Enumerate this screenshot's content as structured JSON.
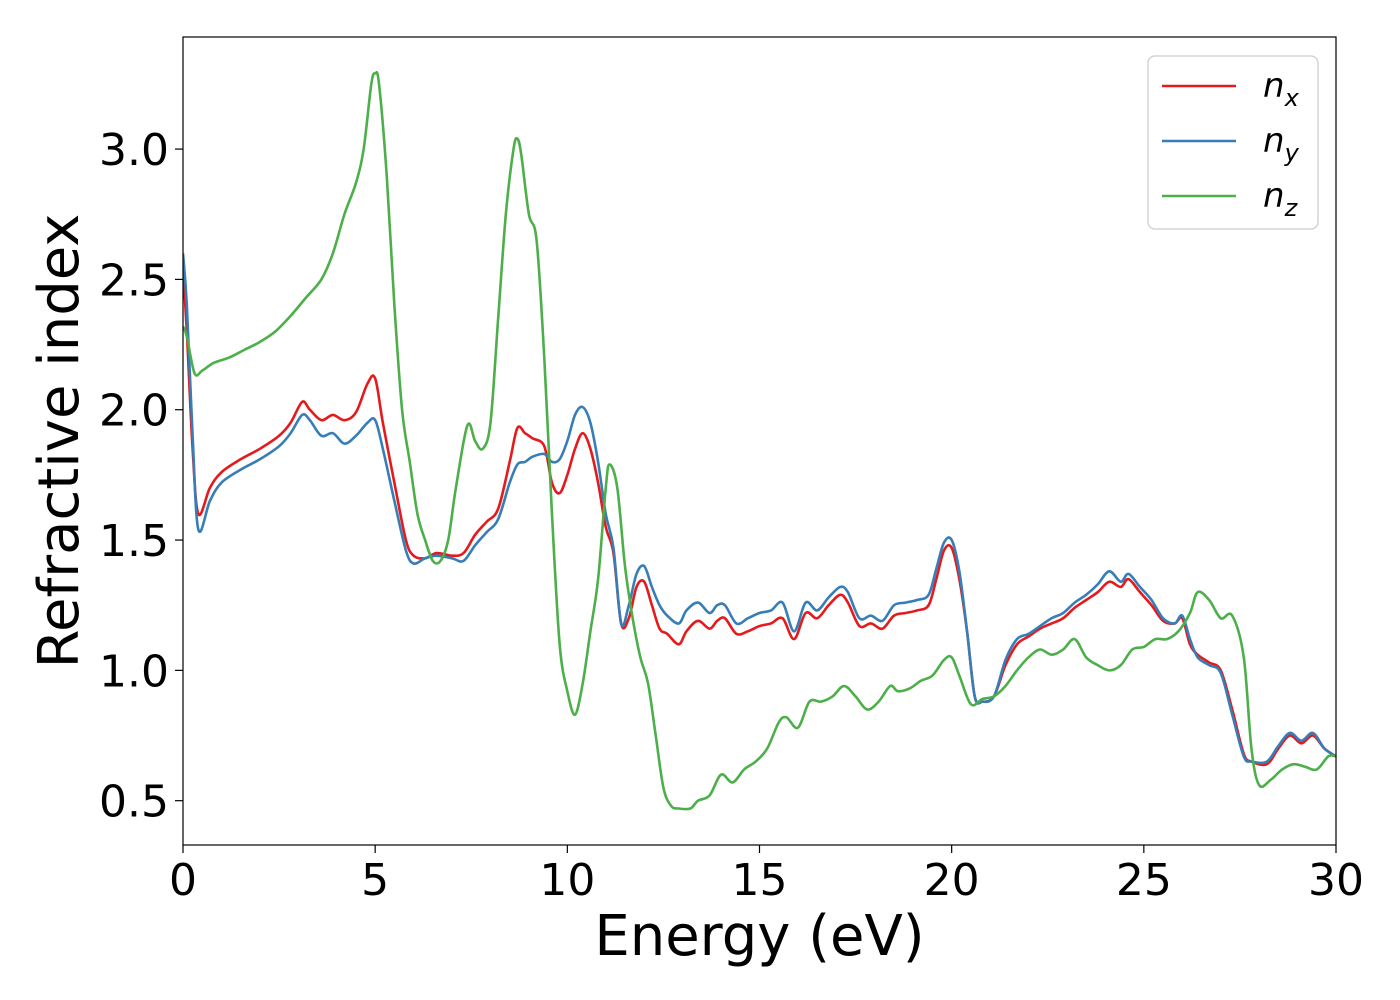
{
  "chart_data": {
    "type": "line",
    "xlabel": "Energy (eV)",
    "ylabel": "Refractive index",
    "xlim": [
      0,
      30
    ],
    "ylim": [
      0.33,
      3.43
    ],
    "xticks": [
      0,
      5,
      10,
      15,
      20,
      25,
      30
    ],
    "yticks": [
      0.5,
      1.0,
      1.5,
      2.0,
      2.5,
      3.0
    ],
    "grid": false,
    "legend": "top-right",
    "series": [
      {
        "name": "n",
        "subscript": "x",
        "color": "#e41a1c",
        "x": [
          0,
          0.1,
          0.25,
          0.4,
          0.7,
          1.0,
          1.5,
          2.0,
          2.5,
          2.8,
          3.1,
          3.3,
          3.6,
          3.9,
          4.2,
          4.5,
          4.8,
          5.0,
          5.2,
          5.5,
          5.8,
          6.0,
          6.3,
          6.6,
          7.0,
          7.3,
          7.6,
          7.9,
          8.2,
          8.5,
          8.7,
          8.9,
          9.1,
          9.4,
          9.6,
          9.8,
          10.0,
          10.2,
          10.4,
          10.6,
          10.8,
          11.0,
          11.2,
          11.4,
          11.6,
          11.8,
          12.0,
          12.2,
          12.4,
          12.6,
          12.9,
          13.1,
          13.4,
          13.7,
          13.9,
          14.1,
          14.4,
          14.7,
          15.0,
          15.3,
          15.6,
          15.9,
          16.2,
          16.5,
          16.8,
          17.1,
          17.3,
          17.6,
          17.9,
          18.2,
          18.5,
          18.8,
          19.1,
          19.4,
          19.6,
          19.8,
          20.0,
          20.2,
          20.4,
          20.6,
          20.8,
          21.1,
          21.4,
          21.7,
          22.0,
          22.3,
          22.6,
          22.9,
          23.2,
          23.5,
          23.8,
          24.1,
          24.4,
          24.6,
          24.9,
          25.2,
          25.5,
          25.8,
          26.0,
          26.2,
          26.4,
          26.7,
          27.0,
          27.3,
          27.6,
          27.8,
          28.2,
          28.5,
          28.8,
          29.1,
          29.4,
          29.7,
          30.0
        ],
        "values": [
          2.55,
          2.3,
          1.85,
          1.6,
          1.7,
          1.76,
          1.81,
          1.85,
          1.9,
          1.95,
          2.03,
          2.0,
          1.96,
          1.98,
          1.96,
          1.99,
          2.1,
          2.12,
          1.95,
          1.72,
          1.5,
          1.44,
          1.43,
          1.45,
          1.44,
          1.45,
          1.52,
          1.57,
          1.62,
          1.8,
          1.93,
          1.91,
          1.89,
          1.86,
          1.72,
          1.68,
          1.75,
          1.85,
          1.91,
          1.85,
          1.72,
          1.55,
          1.45,
          1.18,
          1.2,
          1.32,
          1.34,
          1.25,
          1.16,
          1.14,
          1.1,
          1.15,
          1.19,
          1.16,
          1.19,
          1.2,
          1.14,
          1.15,
          1.17,
          1.18,
          1.2,
          1.12,
          1.22,
          1.2,
          1.25,
          1.29,
          1.26,
          1.17,
          1.18,
          1.16,
          1.21,
          1.22,
          1.23,
          1.25,
          1.35,
          1.46,
          1.47,
          1.35,
          1.15,
          0.9,
          0.88,
          0.9,
          1.02,
          1.1,
          1.13,
          1.16,
          1.18,
          1.2,
          1.24,
          1.27,
          1.3,
          1.34,
          1.32,
          1.35,
          1.3,
          1.25,
          1.19,
          1.18,
          1.2,
          1.1,
          1.06,
          1.03,
          1.0,
          0.85,
          0.68,
          0.65,
          0.64,
          0.7,
          0.75,
          0.72,
          0.75,
          0.7,
          0.67
        ]
      },
      {
        "name": "n",
        "subscript": "y",
        "color": "#377eb8",
        "x": [
          0,
          0.1,
          0.25,
          0.4,
          0.7,
          1.0,
          1.5,
          2.0,
          2.5,
          2.8,
          3.1,
          3.3,
          3.6,
          3.9,
          4.2,
          4.5,
          4.8,
          5.0,
          5.2,
          5.5,
          5.8,
          6.0,
          6.3,
          6.6,
          7.0,
          7.3,
          7.6,
          7.9,
          8.2,
          8.5,
          8.7,
          8.9,
          9.1,
          9.4,
          9.6,
          9.8,
          10.0,
          10.2,
          10.4,
          10.6,
          10.8,
          11.0,
          11.2,
          11.4,
          11.6,
          11.8,
          12.0,
          12.2,
          12.4,
          12.6,
          12.9,
          13.1,
          13.4,
          13.7,
          13.9,
          14.1,
          14.4,
          14.7,
          15.0,
          15.3,
          15.6,
          15.9,
          16.2,
          16.5,
          16.8,
          17.1,
          17.3,
          17.6,
          17.9,
          18.2,
          18.5,
          18.8,
          19.1,
          19.4,
          19.6,
          19.8,
          20.0,
          20.2,
          20.4,
          20.6,
          20.8,
          21.1,
          21.4,
          21.7,
          22.0,
          22.3,
          22.6,
          22.9,
          23.2,
          23.5,
          23.8,
          24.1,
          24.4,
          24.6,
          24.9,
          25.2,
          25.5,
          25.8,
          26.0,
          26.2,
          26.4,
          26.7,
          27.0,
          27.3,
          27.6,
          27.8,
          28.2,
          28.5,
          28.8,
          29.1,
          29.4,
          29.7,
          30.0
        ],
        "values": [
          2.6,
          2.4,
          1.9,
          1.54,
          1.65,
          1.72,
          1.77,
          1.81,
          1.86,
          1.91,
          1.98,
          1.96,
          1.9,
          1.91,
          1.87,
          1.9,
          1.95,
          1.96,
          1.85,
          1.65,
          1.46,
          1.41,
          1.43,
          1.44,
          1.43,
          1.42,
          1.48,
          1.53,
          1.58,
          1.72,
          1.79,
          1.8,
          1.82,
          1.83,
          1.8,
          1.81,
          1.88,
          1.98,
          2.01,
          1.95,
          1.8,
          1.6,
          1.47,
          1.18,
          1.25,
          1.37,
          1.4,
          1.32,
          1.25,
          1.21,
          1.18,
          1.23,
          1.26,
          1.22,
          1.25,
          1.25,
          1.18,
          1.2,
          1.22,
          1.23,
          1.26,
          1.15,
          1.26,
          1.23,
          1.28,
          1.32,
          1.3,
          1.2,
          1.21,
          1.19,
          1.25,
          1.26,
          1.27,
          1.29,
          1.39,
          1.49,
          1.5,
          1.38,
          1.15,
          0.9,
          0.88,
          0.9,
          1.04,
          1.12,
          1.14,
          1.17,
          1.2,
          1.22,
          1.26,
          1.29,
          1.33,
          1.38,
          1.34,
          1.37,
          1.32,
          1.27,
          1.2,
          1.18,
          1.21,
          1.12,
          1.05,
          1.02,
          0.99,
          0.83,
          0.67,
          0.65,
          0.65,
          0.71,
          0.76,
          0.73,
          0.76,
          0.7,
          0.67
        ]
      },
      {
        "name": "n",
        "subscript": "z",
        "color": "#4daf4a",
        "x": [
          0,
          0.1,
          0.3,
          0.5,
          0.8,
          1.2,
          1.6,
          2.0,
          2.4,
          2.8,
          3.2,
          3.6,
          3.9,
          4.2,
          4.5,
          4.7,
          4.9,
          5.0,
          5.1,
          5.3,
          5.5,
          5.7,
          5.9,
          6.1,
          6.3,
          6.5,
          6.7,
          6.9,
          7.1,
          7.4,
          7.6,
          7.8,
          8.0,
          8.2,
          8.4,
          8.6,
          8.7,
          8.8,
          9.0,
          9.2,
          9.4,
          9.6,
          9.8,
          10.0,
          10.2,
          10.4,
          10.6,
          10.8,
          11.0,
          11.1,
          11.3,
          11.5,
          11.7,
          11.9,
          12.1,
          12.3,
          12.5,
          12.7,
          12.9,
          13.2,
          13.4,
          13.7,
          14.0,
          14.3,
          14.6,
          14.9,
          15.2,
          15.5,
          15.7,
          16.0,
          16.3,
          16.6,
          16.9,
          17.2,
          17.5,
          17.8,
          18.1,
          18.4,
          18.6,
          18.9,
          19.2,
          19.5,
          19.8,
          20.0,
          20.2,
          20.5,
          20.8,
          21.1,
          21.4,
          21.7,
          22.0,
          22.3,
          22.6,
          22.9,
          23.2,
          23.5,
          23.8,
          24.1,
          24.4,
          24.7,
          25.0,
          25.3,
          25.6,
          25.9,
          26.2,
          26.4,
          26.7,
          27.0,
          27.3,
          27.6,
          27.8,
          28.0,
          28.3,
          28.6,
          28.9,
          29.2,
          29.5,
          29.8,
          30.0
        ],
        "values": [
          2.32,
          2.28,
          2.14,
          2.15,
          2.18,
          2.2,
          2.23,
          2.26,
          2.3,
          2.36,
          2.43,
          2.5,
          2.6,
          2.75,
          2.87,
          3.0,
          3.25,
          3.29,
          3.25,
          2.9,
          2.4,
          2.0,
          1.8,
          1.6,
          1.5,
          1.42,
          1.42,
          1.5,
          1.7,
          1.94,
          1.88,
          1.85,
          1.95,
          2.35,
          2.75,
          3.0,
          3.04,
          2.98,
          2.75,
          2.65,
          2.2,
          1.6,
          1.1,
          0.92,
          0.83,
          0.95,
          1.15,
          1.35,
          1.7,
          1.79,
          1.7,
          1.4,
          1.2,
          1.05,
          0.95,
          0.75,
          0.55,
          0.48,
          0.47,
          0.47,
          0.5,
          0.52,
          0.6,
          0.57,
          0.62,
          0.65,
          0.7,
          0.8,
          0.82,
          0.78,
          0.88,
          0.88,
          0.9,
          0.94,
          0.9,
          0.85,
          0.88,
          0.94,
          0.92,
          0.93,
          0.96,
          0.98,
          1.04,
          1.05,
          0.98,
          0.87,
          0.89,
          0.9,
          0.94,
          1.0,
          1.05,
          1.08,
          1.06,
          1.08,
          1.12,
          1.05,
          1.02,
          1.0,
          1.02,
          1.08,
          1.09,
          1.12,
          1.12,
          1.15,
          1.22,
          1.3,
          1.27,
          1.2,
          1.21,
          1.05,
          0.7,
          0.56,
          0.58,
          0.62,
          0.64,
          0.63,
          0.62,
          0.67,
          0.67
        ]
      }
    ]
  }
}
